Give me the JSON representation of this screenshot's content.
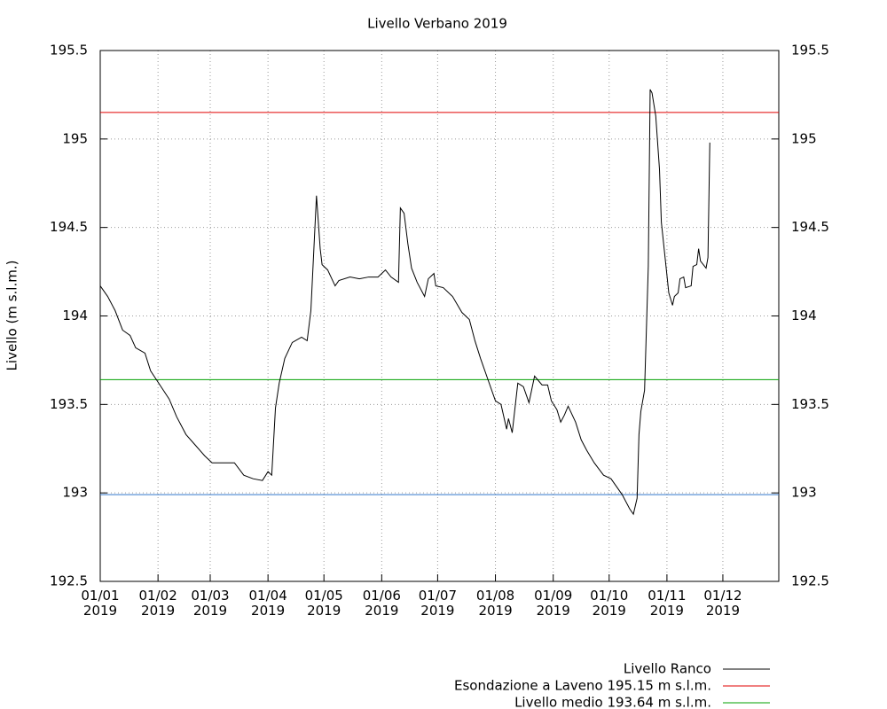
{
  "chart_data": {
    "type": "line",
    "title": "Livello Verbano 2019",
    "y_label": "Livello (m s.l.m.)",
    "xlim": [
      "2019-01-01",
      "2019-12-31"
    ],
    "xticks": [
      {
        "value": "2019-01-01",
        "label": "01/01\n2019"
      },
      {
        "value": "2019-02-01",
        "label": "01/02\n2019"
      },
      {
        "value": "2019-03-01",
        "label": "01/03\n2019"
      },
      {
        "value": "2019-04-01",
        "label": "01/04\n2019"
      },
      {
        "value": "2019-05-01",
        "label": "01/05\n2019"
      },
      {
        "value": "2019-06-01",
        "label": "01/06\n2019"
      },
      {
        "value": "2019-07-01",
        "label": "01/07\n2019"
      },
      {
        "value": "2019-08-01",
        "label": "01/08\n2019"
      },
      {
        "value": "2019-09-01",
        "label": "01/09\n2019"
      },
      {
        "value": "2019-10-01",
        "label": "01/10\n2019"
      },
      {
        "value": "2019-11-01",
        "label": "01/11\n2019"
      },
      {
        "value": "2019-12-01",
        "label": "01/12\n2019"
      }
    ],
    "ylim": [
      192.5,
      195.5
    ],
    "yticks": [
      192.5,
      193,
      193.5,
      194,
      194.5,
      195,
      195.5
    ],
    "grid": true,
    "legend": "bottom-right",
    "series": [
      {
        "name": "Livello Ranco",
        "color": "#000000",
        "x": [
          "2019-01-01",
          "2019-01-05",
          "2019-01-09",
          "2019-01-13",
          "2019-01-17",
          "2019-01-20",
          "2019-01-25",
          "2019-01-28",
          "2019-02-02",
          "2019-02-07",
          "2019-02-11",
          "2019-02-16",
          "2019-02-21",
          "2019-02-26",
          "2019-03-02",
          "2019-03-14",
          "2019-03-19",
          "2019-03-24",
          "2019-03-29",
          "2019-04-01",
          "2019-04-03",
          "2019-04-05",
          "2019-04-07",
          "2019-04-10",
          "2019-04-14",
          "2019-04-19",
          "2019-04-22",
          "2019-04-24",
          "2019-04-27",
          "2019-04-29",
          "2019-04-30",
          "2019-05-03",
          "2019-05-07",
          "2019-05-09",
          "2019-05-15",
          "2019-05-20",
          "2019-05-25",
          "2019-05-30",
          "2019-06-03",
          "2019-06-06",
          "2019-06-10",
          "2019-06-11",
          "2019-06-13",
          "2019-06-15",
          "2019-06-17",
          "2019-06-20",
          "2019-06-24",
          "2019-06-26",
          "2019-06-29",
          "2019-06-30",
          "2019-07-04",
          "2019-07-09",
          "2019-07-14",
          "2019-07-18",
          "2019-07-21",
          "2019-07-24",
          "2019-07-28",
          "2019-08-01",
          "2019-08-04",
          "2019-08-07",
          "2019-08-08",
          "2019-08-10",
          "2019-08-13",
          "2019-08-16",
          "2019-08-19",
          "2019-08-22",
          "2019-08-26",
          "2019-08-29",
          "2019-08-31",
          "2019-09-03",
          "2019-09-05",
          "2019-09-07",
          "2019-09-09",
          "2019-09-13",
          "2019-09-16",
          "2019-09-19",
          "2019-09-23",
          "2019-09-28",
          "2019-10-02",
          "2019-10-08",
          "2019-10-12",
          "2019-10-14",
          "2019-10-16",
          "2019-10-17",
          "2019-10-18",
          "2019-10-20",
          "2019-10-22",
          "2019-10-23",
          "2019-10-24",
          "2019-10-26",
          "2019-10-28",
          "2019-10-29",
          "2019-10-31",
          "2019-11-02",
          "2019-11-04",
          "2019-11-05",
          "2019-11-07",
          "2019-11-08",
          "2019-11-10",
          "2019-11-11",
          "2019-11-14",
          "2019-11-15",
          "2019-11-17",
          "2019-11-18",
          "2019-11-19",
          "2019-11-22",
          "2019-11-23",
          "2019-11-24"
        ],
        "values": [
          194.17,
          194.11,
          194.03,
          193.92,
          193.89,
          193.82,
          193.79,
          193.69,
          193.61,
          193.53,
          193.43,
          193.33,
          193.27,
          193.21,
          193.17,
          193.17,
          193.1,
          193.08,
          193.07,
          193.12,
          193.1,
          193.48,
          193.62,
          193.76,
          193.85,
          193.88,
          193.86,
          194.03,
          194.68,
          194.38,
          194.29,
          194.26,
          194.17,
          194.2,
          194.22,
          194.21,
          194.22,
          194.22,
          194.26,
          194.22,
          194.19,
          194.61,
          194.58,
          194.41,
          194.27,
          194.19,
          194.11,
          194.21,
          194.24,
          194.17,
          194.16,
          194.11,
          194.02,
          193.98,
          193.86,
          193.76,
          193.64,
          193.52,
          193.5,
          193.36,
          193.42,
          193.34,
          193.62,
          193.6,
          193.51,
          193.66,
          193.61,
          193.61,
          193.52,
          193.47,
          193.4,
          193.44,
          193.49,
          193.4,
          193.3,
          193.24,
          193.17,
          193.1,
          193.08,
          192.99,
          192.91,
          192.88,
          192.97,
          193.33,
          193.46,
          193.58,
          194.28,
          195.28,
          195.26,
          195.13,
          194.83,
          194.53,
          194.33,
          194.13,
          194.06,
          194.11,
          194.13,
          194.21,
          194.22,
          194.16,
          194.17,
          194.28,
          194.29,
          194.38,
          194.31,
          194.27,
          194.33,
          194.98
        ]
      }
    ],
    "hlines": [
      {
        "name": "Esondazione a Laveno 195.15 m s.l.m.",
        "value": 195.15,
        "color": "#e00000"
      },
      {
        "name": "Livello medio 193.64 m s.l.m.",
        "value": 193.64,
        "color": "#00a000"
      },
      {
        "value": 192.99,
        "color": "#3377cc"
      }
    ]
  }
}
